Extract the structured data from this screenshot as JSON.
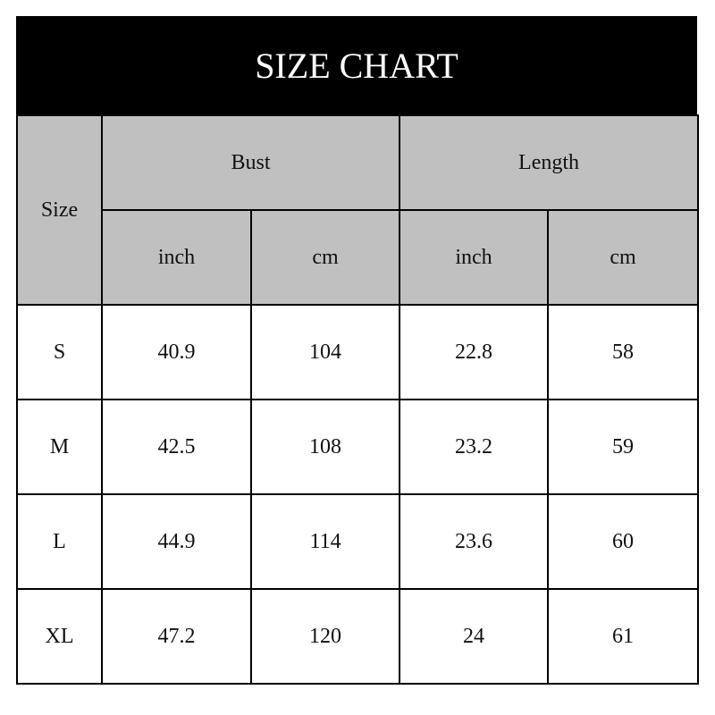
{
  "title": "SIZE CHART",
  "header": {
    "size": "Size",
    "groups": [
      "Bust",
      "Length"
    ],
    "units": [
      "inch",
      "cm",
      "inch",
      "cm"
    ]
  },
  "rows": [
    [
      "S",
      "40.9",
      "104",
      "22.8",
      "58"
    ],
    [
      "M",
      "42.5",
      "108",
      "23.2",
      "59"
    ],
    [
      "L",
      "44.9",
      "114",
      "23.6",
      "60"
    ],
    [
      "XL",
      "47.2",
      "120",
      "24",
      "61"
    ]
  ],
  "colors": {
    "title_bg": "#000000",
    "header_bg": "#c0c0c0"
  }
}
